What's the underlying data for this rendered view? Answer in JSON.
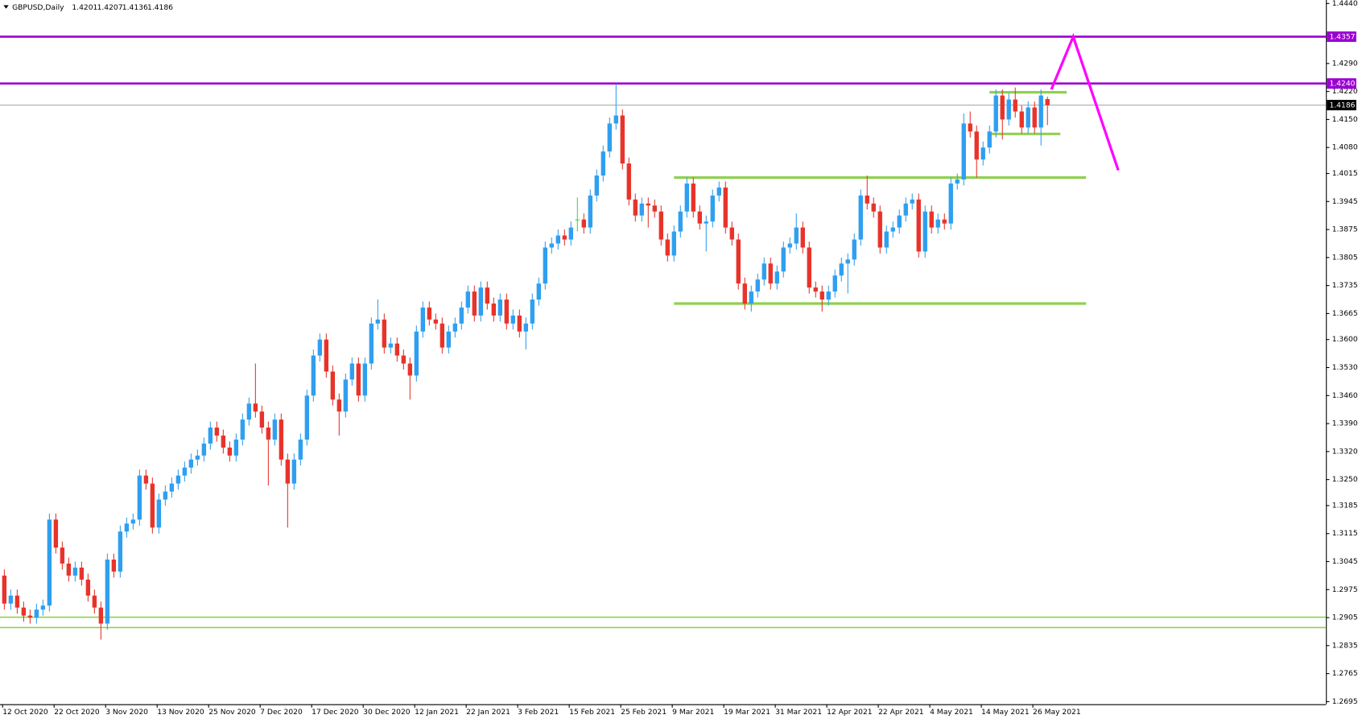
{
  "chart_data": {
    "type": "candlestick",
    "title": "GBPUSD,Daily",
    "up_color": "#2f9ff0",
    "down_color": "#e8332a",
    "doji_color": "#4cd14c",
    "ylim": [
      1.2695,
      1.444
    ],
    "yticks": [
      {
        "value": 1.444,
        "label": "1.4440"
      },
      {
        "value": 1.429,
        "label": "1.4290"
      },
      {
        "value": 1.422,
        "label": "1.4220"
      },
      {
        "value": 1.415,
        "label": "1.4150"
      },
      {
        "value": 1.408,
        "label": "1.4080"
      },
      1.4015,
      1.3945,
      1.3875,
      1.3805,
      1.3735,
      1.3665,
      {
        "value": 1.36,
        "label": "1.3600"
      },
      {
        "value": 1.353,
        "label": "1.3530"
      },
      {
        "value": 1.346,
        "label": "1.3460"
      },
      {
        "value": 1.339,
        "label": "1.3390"
      },
      {
        "value": 1.332,
        "label": "1.3320"
      },
      {
        "value": 1.325,
        "label": "1.3250"
      },
      1.3185,
      1.3115,
      1.3045,
      1.2975,
      1.2905,
      1.2835,
      1.2765,
      1.2695
    ],
    "hlines": [
      {
        "price": 1.4357,
        "color": "#9b00d3"
      },
      {
        "price": {
          "value": 1.424,
          "label": "1.4240"
        },
        "color": "#9b00d3"
      }
    ],
    "zones": [
      {
        "price": 1.4005,
        "from": 104,
        "to": 168,
        "thick": true
      },
      {
        "price": 1.369,
        "from": 104,
        "to": 168,
        "thick": true
      },
      {
        "price": 1.4218,
        "from": 153,
        "to": 165,
        "thick": true
      },
      {
        "price": 1.4114,
        "from": 153,
        "to": 164,
        "thick": true
      },
      {
        "price": 1.2906,
        "full": true,
        "thick": false
      },
      {
        "price": 1.288,
        "full": true,
        "thick": false
      }
    ],
    "zone_color": "#8fd14f",
    "projection": {
      "color": "#ff00ff",
      "points": [
        [
          162.6,
          1.4225
        ],
        [
          166,
          1.4357
        ],
        [
          173,
          1.4023
        ]
      ]
    },
    "categories": [
      "12 Oct 2020",
      null,
      null,
      null,
      null,
      null,
      null,
      null,
      "22 Oct 2020",
      null,
      null,
      null,
      null,
      null,
      null,
      null,
      "3 Nov 2020",
      null,
      null,
      null,
      null,
      null,
      null,
      null,
      "13 Nov 2020",
      null,
      null,
      null,
      null,
      null,
      null,
      null,
      "25 Nov 2020",
      null,
      null,
      null,
      null,
      null,
      null,
      null,
      "7 Dec 2020",
      null,
      null,
      null,
      null,
      null,
      null,
      null,
      "17 Dec 2020",
      null,
      null,
      null,
      null,
      null,
      null,
      null,
      "30 Dec 2020",
      null,
      null,
      null,
      null,
      null,
      null,
      null,
      "12 Jan 2021",
      null,
      null,
      null,
      null,
      null,
      null,
      null,
      "22 Jan 2021",
      null,
      null,
      null,
      null,
      null,
      null,
      null,
      "3 Feb 2021",
      null,
      null,
      null,
      null,
      null,
      null,
      null,
      "15 Feb 2021",
      null,
      null,
      null,
      null,
      null,
      null,
      null,
      "25 Feb 2021",
      null,
      null,
      null,
      null,
      null,
      null,
      null,
      "9 Mar 2021",
      null,
      null,
      null,
      null,
      null,
      null,
      null,
      "19 Mar 2021",
      null,
      null,
      null,
      null,
      null,
      null,
      null,
      "31 Mar 2021",
      null,
      null,
      null,
      null,
      null,
      null,
      null,
      "12 Apr 2021",
      null,
      null,
      null,
      null,
      null,
      null,
      null,
      "22 Apr 2021",
      null,
      null,
      null,
      null,
      null,
      null,
      null,
      "4 May 2021",
      null,
      null,
      null,
      null,
      null,
      null,
      null,
      "14 May 2021",
      null,
      null,
      null,
      null,
      null,
      null,
      null,
      "26 May 2021",
      null,
      null
    ],
    "ohlc": [
      [
        1.301,
        1.3025,
        1.2925,
        1.294
      ],
      [
        1.294,
        1.2975,
        1.2925,
        1.296
      ],
      [
        1.296,
        1.2975,
        1.2915,
        1.293
      ],
      [
        1.293,
        1.2945,
        1.2895,
        1.291
      ],
      [
        1.291,
        1.2925,
        1.289,
        1.2905
      ],
      [
        1.2905,
        1.294,
        1.289,
        1.2925
      ],
      [
        1.2925,
        1.295,
        1.291,
        1.2935
      ],
      [
        1.2935,
        1.3165,
        1.292,
        1.315
      ],
      [
        1.315,
        1.3165,
        1.3065,
        1.308
      ],
      [
        1.308,
        1.3095,
        1.3025,
        1.304
      ],
      [
        1.304,
        1.3055,
        1.2995,
        1.301
      ],
      [
        1.301,
        1.3045,
        1.2995,
        1.303
      ],
      [
        1.303,
        1.3045,
        1.2985,
        1.3
      ],
      [
        1.3,
        1.3015,
        1.2945,
        1.296
      ],
      [
        1.296,
        1.2975,
        1.2915,
        1.293
      ],
      [
        1.293,
        1.2945,
        1.285,
        1.289
      ],
      [
        1.289,
        1.3065,
        1.2875,
        1.305
      ],
      [
        1.305,
        1.3065,
        1.3005,
        1.302
      ],
      [
        1.302,
        1.3135,
        1.3005,
        1.312
      ],
      [
        1.312,
        1.3155,
        1.3105,
        1.314
      ],
      [
        1.314,
        1.3165,
        1.3125,
        1.315
      ],
      [
        1.315,
        1.3275,
        1.3135,
        1.326
      ],
      [
        1.326,
        1.3275,
        1.3225,
        1.324
      ],
      [
        1.324,
        1.3255,
        1.3115,
        1.313
      ],
      [
        1.313,
        1.3215,
        1.3115,
        1.32
      ],
      [
        1.32,
        1.3235,
        1.3185,
        1.322
      ],
      [
        1.322,
        1.3255,
        1.3205,
        1.324
      ],
      [
        1.324,
        1.3275,
        1.3225,
        1.326
      ],
      [
        1.326,
        1.3295,
        1.3245,
        1.328
      ],
      [
        1.328,
        1.3315,
        1.3265,
        1.33
      ],
      [
        1.33,
        1.3325,
        1.3285,
        1.331
      ],
      [
        1.331,
        1.3355,
        1.3295,
        1.334
      ],
      [
        1.334,
        1.3395,
        1.3325,
        1.338
      ],
      [
        1.338,
        1.3395,
        1.3345,
        1.336
      ],
      [
        1.336,
        1.3375,
        1.3315,
        1.333
      ],
      [
        1.333,
        1.3345,
        1.3295,
        1.331
      ],
      [
        1.331,
        1.3365,
        1.3295,
        1.335
      ],
      [
        1.335,
        1.3415,
        1.3335,
        1.34
      ],
      [
        1.34,
        1.3455,
        1.3385,
        1.344
      ],
      [
        1.344,
        1.354,
        1.3405,
        1.342
      ],
      [
        1.342,
        1.3435,
        1.3365,
        1.338
      ],
      [
        1.338,
        1.3395,
        1.3235,
        1.335
      ],
      [
        1.335,
        1.3415,
        1.3335,
        1.34
      ],
      [
        1.34,
        1.3415,
        1.3285,
        1.33
      ],
      [
        1.33,
        1.3315,
        1.313,
        1.324
      ],
      [
        1.324,
        1.3315,
        1.3225,
        1.33
      ],
      [
        1.33,
        1.3365,
        1.3285,
        1.335
      ],
      [
        1.335,
        1.3475,
        1.3335,
        1.346
      ],
      [
        1.346,
        1.3575,
        1.3445,
        1.356
      ],
      [
        1.356,
        1.3615,
        1.3545,
        1.36
      ],
      [
        1.36,
        1.3615,
        1.3505,
        1.352
      ],
      [
        1.352,
        1.3535,
        1.3435,
        1.345
      ],
      [
        1.345,
        1.3465,
        1.336,
        1.342
      ],
      [
        1.342,
        1.3515,
        1.3405,
        1.35
      ],
      [
        1.35,
        1.3555,
        1.3485,
        1.354
      ],
      [
        1.354,
        1.3555,
        1.3445,
        1.346
      ],
      [
        1.346,
        1.3555,
        1.3445,
        1.354
      ],
      [
        1.354,
        1.3655,
        1.3525,
        1.364
      ],
      [
        1.364,
        1.37,
        1.3625,
        1.365
      ],
      [
        1.365,
        1.3665,
        1.3565,
        1.358
      ],
      [
        1.358,
        1.3605,
        1.3565,
        1.359
      ],
      [
        1.359,
        1.3605,
        1.3545,
        1.356
      ],
      [
        1.356,
        1.3575,
        1.3525,
        1.354
      ],
      [
        1.354,
        1.3555,
        1.345,
        1.351
      ],
      [
        1.351,
        1.3635,
        1.3495,
        1.362
      ],
      [
        1.362,
        1.3695,
        1.3605,
        1.368
      ],
      [
        1.368,
        1.3695,
        1.3635,
        1.365
      ],
      [
        1.365,
        1.3665,
        1.3625,
        1.364
      ],
      [
        1.364,
        1.3655,
        1.3565,
        1.358
      ],
      [
        1.358,
        1.3635,
        1.3565,
        1.362
      ],
      [
        1.362,
        1.3655,
        1.3605,
        1.364
      ],
      [
        1.364,
        1.3695,
        1.3625,
        1.368
      ],
      [
        1.368,
        1.3735,
        1.3665,
        1.372
      ],
      [
        1.372,
        1.3735,
        1.3645,
        1.366
      ],
      [
        1.366,
        1.3745,
        1.3645,
        1.373
      ],
      [
        1.373,
        1.3745,
        1.3675,
        1.369
      ],
      [
        1.369,
        1.3705,
        1.3645,
        1.366
      ],
      [
        1.366,
        1.3715,
        1.3645,
        1.37
      ],
      [
        1.37,
        1.3715,
        1.3625,
        1.364
      ],
      [
        1.364,
        1.3675,
        1.3625,
        1.366
      ],
      [
        1.366,
        1.3675,
        1.3605,
        1.362
      ],
      [
        1.362,
        1.3655,
        1.3575,
        1.364
      ],
      [
        1.364,
        1.3715,
        1.3625,
        1.37
      ],
      [
        1.37,
        1.3755,
        1.3685,
        1.374
      ],
      [
        1.374,
        1.3845,
        1.3725,
        1.383
      ],
      [
        1.383,
        1.3855,
        1.3815,
        1.384
      ],
      [
        1.384,
        1.3875,
        1.3825,
        1.386
      ],
      [
        1.386,
        1.3875,
        1.3835,
        1.385
      ],
      [
        1.385,
        1.3895,
        1.3835,
        1.388
      ],
      [
        1.39,
        1.3955,
        1.387,
        1.39
      ],
      [
        1.39,
        1.3915,
        1.3865,
        1.388
      ],
      [
        1.388,
        1.3975,
        1.3865,
        1.396
      ],
      [
        1.396,
        1.4025,
        1.3945,
        1.401
      ],
      [
        1.401,
        1.4085,
        1.3995,
        1.407
      ],
      [
        1.407,
        1.4155,
        1.4055,
        1.414
      ],
      [
        1.414,
        1.424,
        1.4125,
        1.416
      ],
      [
        1.416,
        1.4175,
        1.4025,
        1.404
      ],
      [
        1.404,
        1.4055,
        1.3935,
        1.395
      ],
      [
        1.395,
        1.3965,
        1.3895,
        1.391
      ],
      [
        1.391,
        1.3955,
        1.3895,
        1.394
      ],
      [
        1.394,
        1.3955,
        1.388,
        1.3935
      ],
      [
        1.3935,
        1.395,
        1.3905,
        1.392
      ],
      [
        1.392,
        1.3935,
        1.3835,
        1.385
      ],
      [
        1.385,
        1.3865,
        1.3795,
        1.381
      ],
      [
        1.381,
        1.3885,
        1.3795,
        1.387
      ],
      [
        1.387,
        1.3935,
        1.3855,
        1.392
      ],
      [
        1.392,
        1.4005,
        1.3905,
        1.399
      ],
      [
        1.399,
        1.4005,
        1.3905,
        1.392
      ],
      [
        1.392,
        1.3935,
        1.3875,
        1.389
      ],
      [
        1.389,
        1.391,
        1.382,
        1.3895
      ],
      [
        1.3895,
        1.3975,
        1.388,
        1.396
      ],
      [
        1.396,
        1.3995,
        1.3945,
        1.398
      ],
      [
        1.398,
        1.3995,
        1.3865,
        1.388
      ],
      [
        1.388,
        1.3895,
        1.3835,
        1.385
      ],
      [
        1.385,
        1.3865,
        1.3725,
        1.374
      ],
      [
        1.374,
        1.3755,
        1.3675,
        1.369
      ],
      [
        1.369,
        1.3735,
        1.367,
        1.372
      ],
      [
        1.372,
        1.3765,
        1.3705,
        1.375
      ],
      [
        1.375,
        1.3805,
        1.3735,
        1.379
      ],
      [
        1.379,
        1.3805,
        1.3725,
        1.374
      ],
      [
        1.374,
        1.3785,
        1.3725,
        1.377
      ],
      [
        1.377,
        1.3845,
        1.3755,
        1.383
      ],
      [
        1.383,
        1.3855,
        1.3815,
        1.384
      ],
      [
        1.384,
        1.3915,
        1.3825,
        1.388
      ],
      [
        1.388,
        1.3895,
        1.3815,
        1.383
      ],
      [
        1.383,
        1.3845,
        1.3715,
        1.373
      ],
      [
        1.373,
        1.3745,
        1.3705,
        1.372
      ],
      [
        1.372,
        1.3735,
        1.367,
        1.37
      ],
      [
        1.37,
        1.3735,
        1.3685,
        1.372
      ],
      [
        1.372,
        1.3775,
        1.3705,
        1.376
      ],
      [
        1.376,
        1.3805,
        1.3745,
        1.379
      ],
      [
        1.379,
        1.3815,
        1.3715,
        1.38
      ],
      [
        1.38,
        1.3865,
        1.3785,
        1.385
      ],
      [
        1.385,
        1.3975,
        1.3835,
        1.396
      ],
      [
        1.396,
        1.401,
        1.3925,
        1.394
      ],
      [
        1.394,
        1.3955,
        1.3905,
        1.392
      ],
      [
        1.392,
        1.3935,
        1.3815,
        1.383
      ],
      [
        1.383,
        1.3885,
        1.3815,
        1.387
      ],
      [
        1.387,
        1.3895,
        1.3855,
        1.388
      ],
      [
        1.388,
        1.3925,
        1.3865,
        1.391
      ],
      [
        1.391,
        1.3955,
        1.3895,
        1.394
      ],
      [
        1.394,
        1.3965,
        1.3925,
        1.395
      ],
      [
        1.395,
        1.3965,
        1.3805,
        1.382
      ],
      [
        1.382,
        1.3935,
        1.3805,
        1.392
      ],
      [
        1.392,
        1.3935,
        1.3865,
        1.388
      ],
      [
        1.388,
        1.3915,
        1.3865,
        1.39
      ],
      [
        1.39,
        1.3915,
        1.3875,
        1.389
      ],
      [
        1.389,
        1.4005,
        1.3875,
        1.399
      ],
      [
        1.399,
        1.4015,
        1.3975,
        1.4
      ],
      [
        1.4,
        1.4165,
        1.3985,
        1.414
      ],
      [
        1.414,
        1.417,
        1.4105,
        1.412
      ],
      [
        1.412,
        1.4135,
        1.4005,
        1.405
      ],
      [
        1.405,
        1.4095,
        1.4035,
        1.408
      ],
      [
        1.408,
        1.4135,
        1.4065,
        1.412
      ],
      [
        1.412,
        1.4225,
        1.4105,
        1.421
      ],
      [
        1.421,
        1.4225,
        1.41,
        1.415
      ],
      [
        1.415,
        1.4215,
        1.4135,
        1.42
      ],
      [
        1.42,
        1.423,
        1.4155,
        1.417
      ],
      [
        1.417,
        1.4185,
        1.4115,
        1.413
      ],
      [
        1.413,
        1.4195,
        1.4115,
        1.418
      ],
      [
        1.418,
        1.4195,
        1.4115,
        1.413
      ],
      [
        1.413,
        1.4225,
        1.4085,
        1.421
      ],
      [
        1.4201,
        1.4207,
        1.4136,
        1.4186
      ]
    ]
  }
}
